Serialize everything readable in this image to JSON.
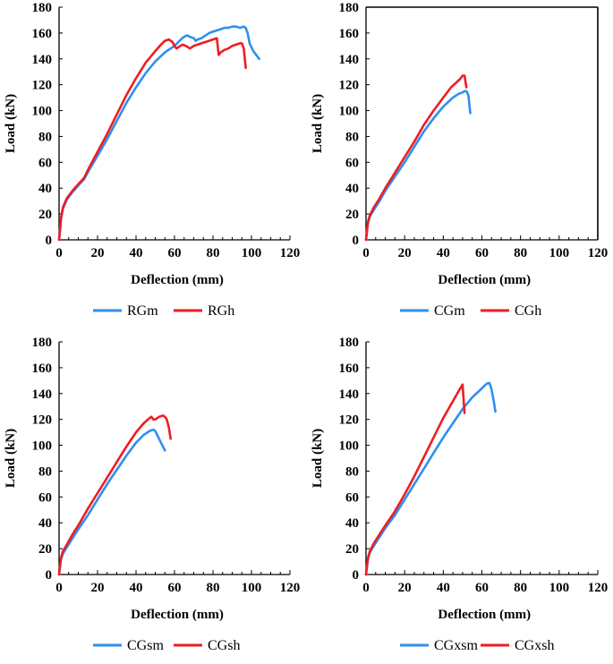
{
  "figure": {
    "background": "#ffffff"
  },
  "chart_data": [
    {
      "type": "line",
      "xlabel": "Deflection (mm)",
      "ylabel": "Load (kN)",
      "xlim": [
        0,
        120
      ],
      "ylim": [
        0,
        180
      ],
      "xticks": [
        0,
        20,
        40,
        60,
        80,
        100,
        120
      ],
      "yticks": [
        0,
        20,
        40,
        60,
        80,
        100,
        120,
        140,
        160,
        180
      ],
      "frame": "left-bottom",
      "legend": "bottom",
      "series": [
        {
          "name": "RGm",
          "color": "#2e8ff0",
          "x": [
            0,
            0.5,
            1,
            2,
            4,
            7,
            10,
            13,
            16,
            20,
            25,
            30,
            35,
            40,
            45,
            50,
            55,
            58,
            60,
            62,
            64,
            66,
            67,
            68,
            70,
            71,
            72,
            74,
            76,
            78,
            80,
            82,
            84,
            86,
            88,
            90,
            92,
            94,
            96,
            97,
            98,
            99,
            100,
            101,
            102,
            103,
            104
          ],
          "y": [
            0,
            8,
            16,
            24,
            31,
            37,
            42,
            47,
            55,
            65,
            78,
            92,
            106,
            118,
            129,
            138,
            145,
            148,
            150,
            153,
            156,
            158,
            158,
            157,
            156,
            154,
            155,
            156,
            158,
            160,
            161,
            162,
            163,
            164,
            164,
            165,
            165,
            164,
            165,
            164,
            160,
            152,
            149,
            146,
            144,
            142,
            140
          ]
        },
        {
          "name": "RGh",
          "color": "#ee1d23",
          "x": [
            0,
            0.5,
            1,
            2,
            4,
            7,
            10,
            13,
            16,
            20,
            25,
            30,
            35,
            40,
            45,
            50,
            53,
            55,
            57,
            58,
            59,
            60,
            61,
            62,
            64,
            66,
            68,
            70,
            72,
            74,
            76,
            78,
            80,
            82,
            83,
            84,
            86,
            88,
            90,
            92,
            94,
            95,
            96,
            97
          ],
          "y": [
            0,
            8,
            17,
            25,
            32,
            38,
            43,
            48,
            57,
            68,
            82,
            97,
            112,
            125,
            137,
            146,
            151,
            154,
            155,
            154,
            153,
            150,
            148,
            149,
            151,
            150,
            148,
            150,
            151,
            152,
            153,
            154,
            155,
            156,
            143,
            145,
            147,
            148,
            150,
            151,
            152,
            152,
            148,
            133
          ]
        }
      ]
    },
    {
      "type": "line",
      "xlabel": "Deflection (mm)",
      "ylabel": "Load (kN)",
      "xlim": [
        0,
        120
      ],
      "ylim": [
        0,
        180
      ],
      "xticks": [
        0,
        20,
        40,
        60,
        80,
        100,
        120
      ],
      "yticks": [
        0,
        20,
        40,
        60,
        80,
        100,
        120,
        140,
        160,
        180
      ],
      "frame": "box",
      "legend": "bottom",
      "series": [
        {
          "name": "CGm",
          "color": "#2e8ff0",
          "x": [
            0,
            0.5,
            1,
            2,
            4,
            7,
            10,
            15,
            20,
            25,
            30,
            35,
            40,
            45,
            48,
            50,
            51,
            52,
            53,
            54
          ],
          "y": [
            0,
            7,
            13,
            18,
            23,
            30,
            38,
            49,
            60,
            72,
            84,
            94,
            103,
            110,
            113,
            114,
            115,
            115,
            112,
            98
          ]
        },
        {
          "name": "CGh",
          "color": "#ee1d23",
          "x": [
            0,
            0.5,
            1,
            2,
            4,
            7,
            10,
            15,
            20,
            25,
            30,
            35,
            40,
            44,
            47,
            49,
            50,
            51,
            52
          ],
          "y": [
            0,
            7,
            14,
            19,
            25,
            32,
            40,
            52,
            64,
            76,
            89,
            100,
            110,
            118,
            122,
            125,
            127,
            127,
            118
          ]
        }
      ]
    },
    {
      "type": "line",
      "xlabel": "Deflection (mm)",
      "ylabel": "Load (kN)",
      "xlim": [
        0,
        120
      ],
      "ylim": [
        0,
        180
      ],
      "xticks": [
        0,
        20,
        40,
        60,
        80,
        100,
        120
      ],
      "yticks": [
        0,
        20,
        40,
        60,
        80,
        100,
        120,
        140,
        160,
        180
      ],
      "frame": "left-bottom",
      "legend": "bottom",
      "series": [
        {
          "name": "CGsm",
          "color": "#2e8ff0",
          "x": [
            0,
            0.5,
            1,
            2,
            4,
            7,
            10,
            15,
            20,
            25,
            30,
            35,
            40,
            44,
            47,
            49,
            50,
            51,
            52,
            53,
            54,
            55
          ],
          "y": [
            0,
            6,
            12,
            16,
            21,
            28,
            35,
            46,
            58,
            70,
            81,
            92,
            102,
            108,
            111,
            112,
            111,
            108,
            105,
            102,
            99,
            96
          ]
        },
        {
          "name": "CGsh",
          "color": "#ee1d23",
          "x": [
            0,
            0.5,
            1,
            2,
            4,
            7,
            10,
            15,
            20,
            25,
            30,
            35,
            40,
            44,
            47,
            48,
            49,
            50,
            52,
            54,
            55,
            56,
            57,
            58
          ],
          "y": [
            0,
            7,
            13,
            18,
            23,
            31,
            38,
            51,
            63,
            75,
            87,
            99,
            110,
            117,
            121,
            122,
            120,
            120,
            122,
            123,
            122,
            120,
            114,
            105
          ]
        }
      ]
    },
    {
      "type": "line",
      "xlabel": "Deflection (mm)",
      "ylabel": "Load (kN)",
      "xlim": [
        0,
        120
      ],
      "ylim": [
        0,
        180
      ],
      "xticks": [
        0,
        20,
        40,
        60,
        80,
        100,
        120
      ],
      "yticks": [
        0,
        20,
        40,
        60,
        80,
        100,
        120,
        140,
        160,
        180
      ],
      "frame": "left-bottom",
      "legend": "bottom",
      "series": [
        {
          "name": "CGxsm",
          "color": "#2e8ff0",
          "x": [
            0,
            0.5,
            1,
            2,
            4,
            7,
            10,
            15,
            20,
            25,
            30,
            35,
            40,
            45,
            50,
            55,
            60,
            62,
            63,
            64,
            65,
            66,
            67
          ],
          "y": [
            0,
            6,
            12,
            17,
            22,
            29,
            36,
            46,
            58,
            70,
            82,
            94,
            106,
            117,
            128,
            137,
            144,
            147,
            148,
            148,
            143,
            135,
            126
          ]
        },
        {
          "name": "CGxsh",
          "color": "#ee1d23",
          "x": [
            0,
            0.5,
            1,
            2,
            4,
            7,
            10,
            15,
            20,
            25,
            30,
            35,
            40,
            45,
            48,
            50,
            51
          ],
          "y": [
            0,
            7,
            13,
            18,
            24,
            31,
            38,
            49,
            62,
            76,
            91,
            106,
            121,
            134,
            142,
            147,
            125
          ]
        }
      ]
    }
  ]
}
